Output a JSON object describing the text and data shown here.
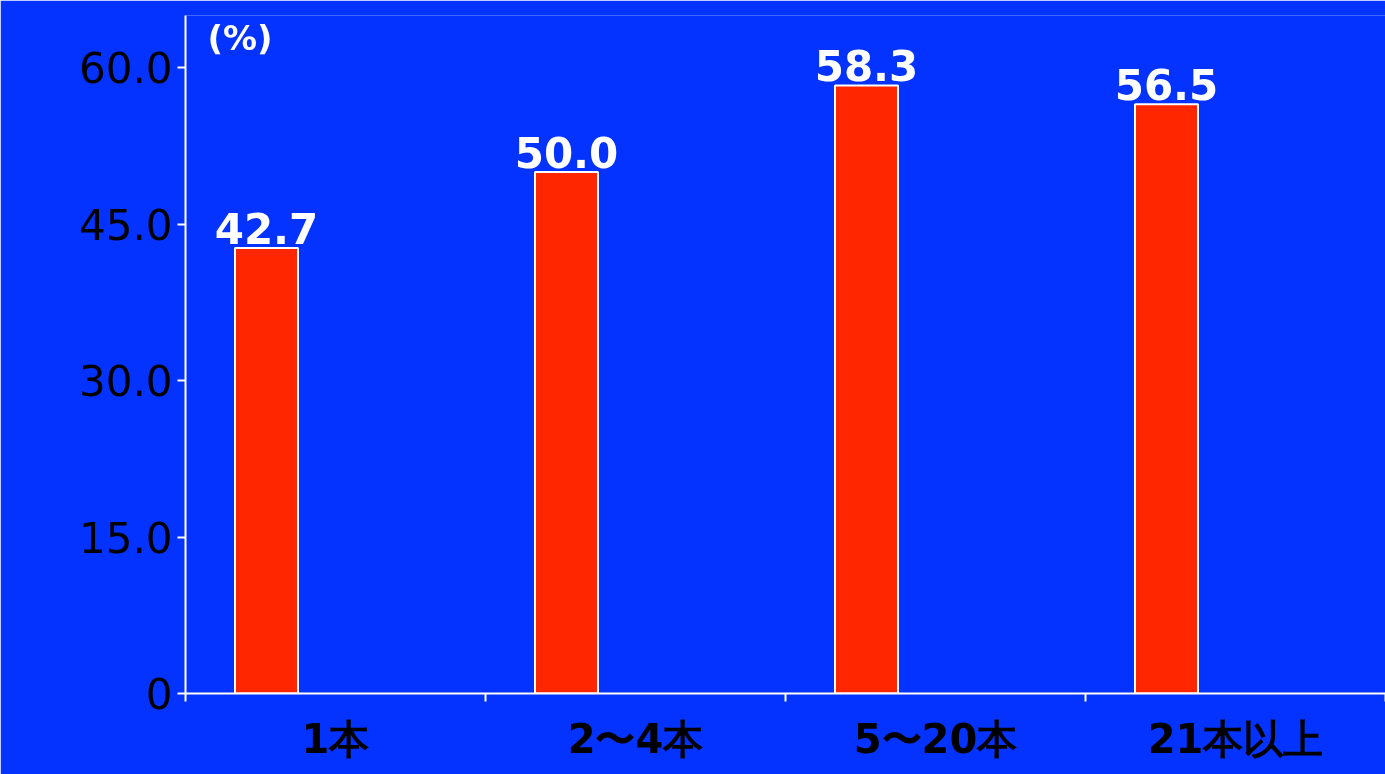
{
  "chart_data": {
    "type": "bar",
    "ylabel": "(%)",
    "categories": [
      "1本",
      "2〜4本",
      "5〜20本",
      "21本以上"
    ],
    "values": [
      42.7,
      50.0,
      58.3,
      56.5
    ],
    "color": "#ff2600",
    "value_labels": [
      "42.7",
      "50.0",
      "58.3",
      "56.5"
    ],
    "ylim": [
      0,
      65
    ],
    "yticks": [
      {
        "value": 0,
        "label": "0"
      },
      {
        "value": 15,
        "label": "15.0"
      },
      {
        "value": 30,
        "label": "30.0"
      },
      {
        "value": 45,
        "label": "45.0"
      },
      {
        "value": 60,
        "label": "60.0"
      }
    ],
    "grid": false
  }
}
